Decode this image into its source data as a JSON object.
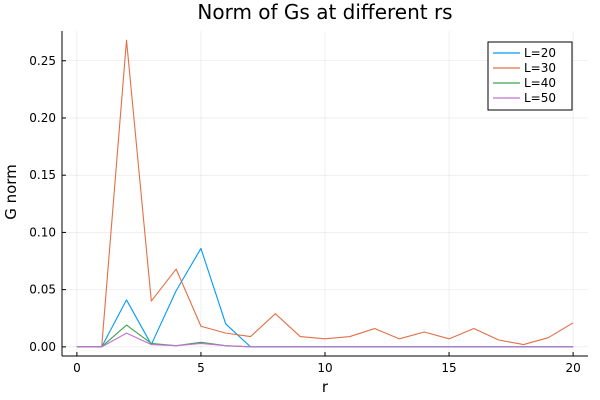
{
  "chart_data": {
    "type": "line",
    "title": "Norm of Gs at different rs",
    "xlabel": "r",
    "ylabel": "G norm",
    "xlim": [
      -0.6,
      20.6
    ],
    "ylim": [
      -0.008,
      0.276
    ],
    "xticks": [
      0,
      5,
      10,
      15,
      20
    ],
    "xtick_labels": [
      "0",
      "5",
      "10",
      "15",
      "20"
    ],
    "yticks": [
      0,
      0.05,
      0.1,
      0.15,
      0.2,
      0.25
    ],
    "ytick_labels": [
      "0.00",
      "0.05",
      "0.10",
      "0.15",
      "0.20",
      "0.25"
    ],
    "grid": true,
    "legend_position": "top-right",
    "x": [
      0,
      1,
      2,
      3,
      4,
      5,
      6,
      7,
      8,
      9,
      10,
      11,
      12,
      13,
      14,
      15,
      16,
      17,
      18,
      19,
      20
    ],
    "series": [
      {
        "name": "L=20",
        "color": "#009AFA",
        "values": [
          0,
          0,
          0.041,
          0.002,
          0.049,
          0.086,
          0.02,
          0,
          0,
          0,
          0,
          0,
          0,
          0,
          0,
          0,
          0,
          0,
          0,
          0,
          0
        ]
      },
      {
        "name": "L=30",
        "color": "#E26F46",
        "values": [
          0,
          0,
          0.268,
          0.04,
          0.068,
          0.018,
          0.012,
          0.009,
          0.029,
          0.009,
          0.007,
          0.009,
          0.016,
          0.007,
          0.013,
          0.007,
          0.016,
          0.006,
          0.002,
          0.008,
          0.021
        ]
      },
      {
        "name": "L=40",
        "color": "#3DA44D",
        "values": [
          0,
          0,
          0.019,
          0.003,
          0.001,
          0.004,
          0.001,
          0,
          0,
          0,
          0,
          0,
          0,
          0,
          0,
          0,
          0,
          0,
          0,
          0,
          0
        ]
      },
      {
        "name": "L=50",
        "color": "#C271D2",
        "values": [
          0,
          0,
          0.012,
          0.002,
          0.001,
          0.003,
          0.001,
          0,
          0,
          0,
          0,
          0,
          0,
          0,
          0,
          0,
          0,
          0,
          0,
          0,
          0
        ]
      }
    ]
  }
}
